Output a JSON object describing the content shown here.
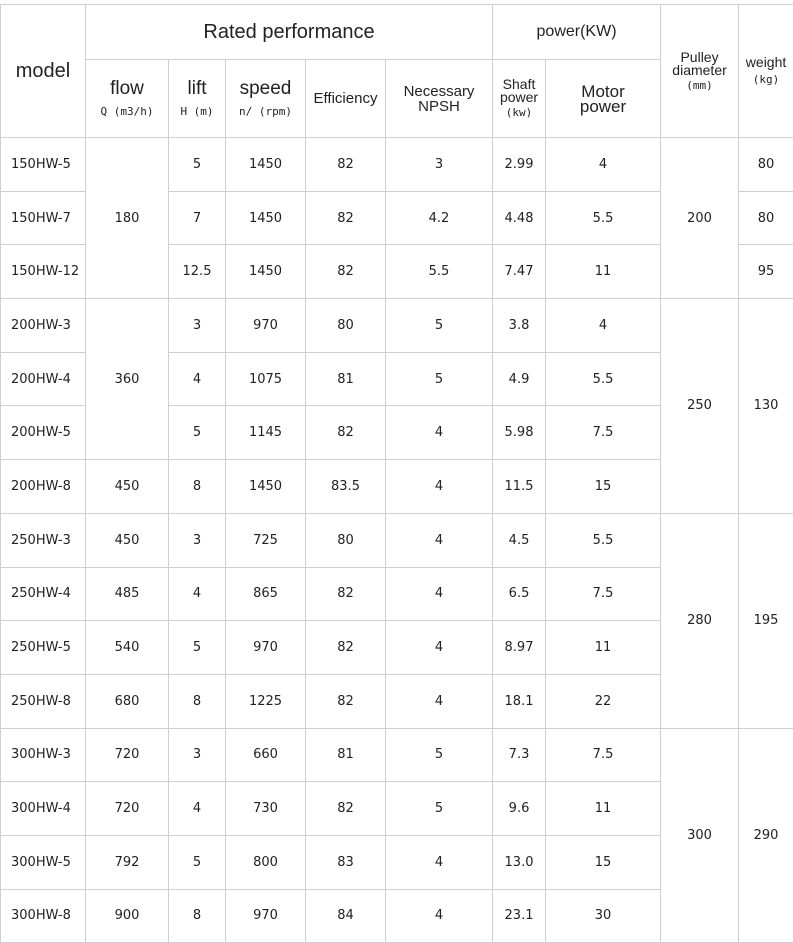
{
  "headers": {
    "model": "model",
    "rated_performance": "Rated performance",
    "power": "power(KW)",
    "pulley": "Pulley diameter",
    "pulley_unit": "(mm)",
    "weight": "weight",
    "weight_unit": "(kg)",
    "flow": "flow",
    "flow_unit": "Q (m3/h)",
    "lift": "lift",
    "lift_unit": "H (m)",
    "speed": "speed",
    "speed_unit": "n/ (rpm)",
    "efficiency": "Efficiency",
    "npsh": "Necessary NPSH",
    "shaft_power": "Shaft power",
    "shaft_unit": "(kw)",
    "motor_power": "Motor power"
  },
  "rows": [
    {
      "model": "150HW-5",
      "lift": "5",
      "speed": "1450",
      "eff": "82",
      "npsh": "3",
      "shaft": "2.99",
      "motor": "4"
    },
    {
      "model": "150HW-7",
      "lift": "7",
      "speed": "1450",
      "eff": "82",
      "npsh": "4.2",
      "shaft": "4.48",
      "motor": "5.5"
    },
    {
      "model": "150HW-12",
      "lift": "12.5",
      "speed": "1450",
      "eff": "82",
      "npsh": "5.5",
      "shaft": "7.47",
      "motor": "11"
    },
    {
      "model": "200HW-3",
      "lift": "3",
      "speed": "970",
      "eff": "80",
      "npsh": "5",
      "shaft": "3.8",
      "motor": "4"
    },
    {
      "model": "200HW-4",
      "lift": "4",
      "speed": "1075",
      "eff": "81",
      "npsh": "5",
      "shaft": "4.9",
      "motor": "5.5"
    },
    {
      "model": "200HW-5",
      "lift": "5",
      "speed": "1145",
      "eff": "82",
      "npsh": "4",
      "shaft": "5.98",
      "motor": "7.5"
    },
    {
      "model": "200HW-8",
      "lift": "8",
      "speed": "1450",
      "eff": "83.5",
      "npsh": "4",
      "shaft": "11.5",
      "motor": "15"
    },
    {
      "model": "250HW-3",
      "lift": "3",
      "speed": "725",
      "eff": "80",
      "npsh": "4",
      "shaft": "4.5",
      "motor": "5.5"
    },
    {
      "model": "250HW-4",
      "lift": "4",
      "speed": "865",
      "eff": "82",
      "npsh": "4",
      "shaft": "6.5",
      "motor": "7.5"
    },
    {
      "model": "250HW-5",
      "lift": "5",
      "speed": "970",
      "eff": "82",
      "npsh": "4",
      "shaft": "8.97",
      "motor": "11"
    },
    {
      "model": "250HW-8",
      "lift": "8",
      "speed": "1225",
      "eff": "82",
      "npsh": "4",
      "shaft": "18.1",
      "motor": "22"
    },
    {
      "model": "300HW-3",
      "lift": "3",
      "speed": "660",
      "eff": "81",
      "npsh": "5",
      "shaft": "7.3",
      "motor": "7.5"
    },
    {
      "model": "300HW-4",
      "lift": "4",
      "speed": "730",
      "eff": "82",
      "npsh": "5",
      "shaft": "9.6",
      "motor": "11"
    },
    {
      "model": "300HW-5",
      "lift": "5",
      "speed": "800",
      "eff": "83",
      "npsh": "4",
      "shaft": "13.0",
      "motor": "15"
    },
    {
      "model": "300HW-8",
      "lift": "8",
      "speed": "970",
      "eff": "84",
      "npsh": "4",
      "shaft": "23.1",
      "motor": "30"
    }
  ],
  "flow_groups": [
    {
      "value": "180",
      "rows": 3
    },
    {
      "value": "360",
      "rows": 3
    },
    {
      "value": "450",
      "rows": 1
    },
    {
      "value": "450",
      "rows": 1
    },
    {
      "value": "485",
      "rows": 1
    },
    {
      "value": "540",
      "rows": 1
    },
    {
      "value": "680",
      "rows": 1
    },
    {
      "value": "720",
      "rows": 1
    },
    {
      "value": "720",
      "rows": 1
    },
    {
      "value": "792",
      "rows": 1
    },
    {
      "value": "900",
      "rows": 1
    }
  ],
  "pulley_groups": [
    {
      "value": "200",
      "rows": 3
    },
    {
      "value": "250",
      "rows": 4
    },
    {
      "value": "280",
      "rows": 4
    },
    {
      "value": "300",
      "rows": 4
    }
  ],
  "weight_groups": [
    {
      "value": "80",
      "rows": 1
    },
    {
      "value": "80",
      "rows": 1
    },
    {
      "value": "95",
      "rows": 1
    },
    {
      "value": "130",
      "rows": 4
    },
    {
      "value": "195",
      "rows": 4
    },
    {
      "value": "290",
      "rows": 4
    }
  ]
}
